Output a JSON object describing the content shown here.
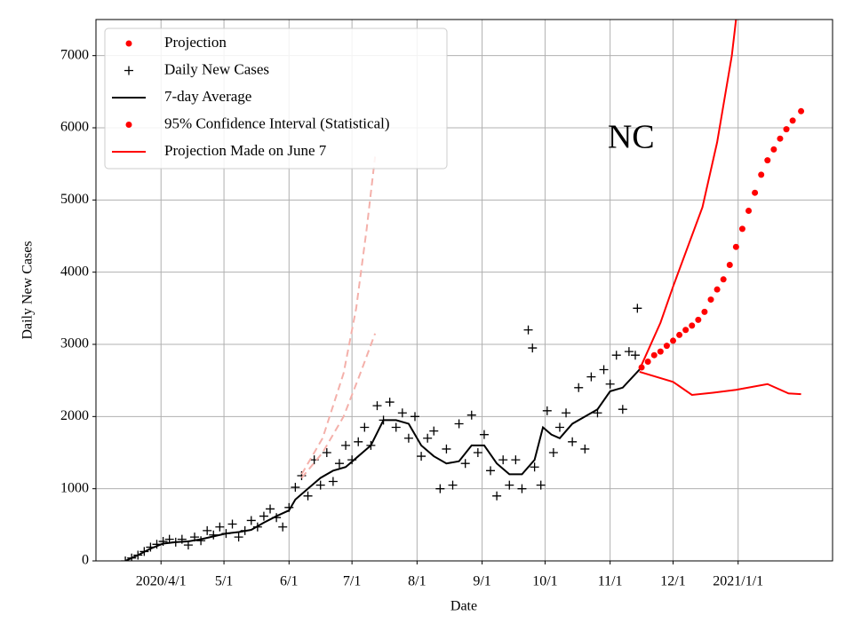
{
  "chart_data": {
    "type": "line",
    "xlabel": "Date",
    "ylabel": "Daily New Cases",
    "annotation": {
      "text": "NC",
      "x": "2020-11-11",
      "y": 5830
    },
    "xlim": [
      "2020-03-01",
      "2021-02-15"
    ],
    "ylim": [
      0,
      7500
    ],
    "xticks": [
      {
        "value": "2020-04-01",
        "label": "2020/4/1"
      },
      {
        "value": "2020-05-01",
        "label": "5/1"
      },
      {
        "value": "2020-06-01",
        "label": "6/1"
      },
      {
        "value": "2020-07-01",
        "label": "7/1"
      },
      {
        "value": "2020-08-01",
        "label": "8/1"
      },
      {
        "value": "2020-09-01",
        "label": "9/1"
      },
      {
        "value": "2020-10-01",
        "label": "10/1"
      },
      {
        "value": "2020-11-01",
        "label": "11/1"
      },
      {
        "value": "2020-12-01",
        "label": "12/1"
      },
      {
        "value": "2021-01-01",
        "label": "2021/1/1"
      }
    ],
    "yticks": [
      0,
      1000,
      2000,
      3000,
      4000,
      5000,
      6000,
      7000
    ],
    "grid": true,
    "legend": "upper left",
    "series": [
      {
        "name": "Projection",
        "color": "#ff0000",
        "legend_marker": "dot",
        "style": "dots",
        "parts": [
          {
            "x": [
              "2020-11-16",
              "2020-11-19",
              "2020-11-22",
              "2020-11-25",
              "2020-11-28",
              "2020-12-01",
              "2020-12-04",
              "2020-12-07",
              "2020-12-10",
              "2020-12-13",
              "2020-12-16",
              "2020-12-19",
              "2020-12-22",
              "2020-12-25",
              "2020-12-28",
              "2020-12-31",
              "2021-01-03",
              "2021-01-06",
              "2021-01-09",
              "2021-01-12",
              "2021-01-15",
              "2021-01-18",
              "2021-01-21",
              "2021-01-24",
              "2021-01-27",
              "2021-01-31"
            ],
            "values": [
              2680,
              2760,
              2850,
              2900,
              2980,
              3050,
              3130,
              3200,
              3260,
              3340,
              3450,
              3620,
              3760,
              3900,
              4100,
              4350,
              4600,
              4850,
              5100,
              5350,
              5550,
              5700,
              5850,
              5980,
              6100,
              6230
            ]
          }
        ]
      },
      {
        "name": "Daily New Cases",
        "color": "#000000",
        "legend_marker": "plus",
        "style": "plus",
        "parts": [
          {
            "x": [
              "2020-03-15",
              "2020-03-18",
              "2020-03-21",
              "2020-03-24",
              "2020-03-27",
              "2020-03-30",
              "2020-04-02",
              "2020-04-05",
              "2020-04-08",
              "2020-04-11",
              "2020-04-14",
              "2020-04-17",
              "2020-04-20",
              "2020-04-23",
              "2020-04-26",
              "2020-04-29",
              "2020-05-02",
              "2020-05-05",
              "2020-05-08",
              "2020-05-11",
              "2020-05-14",
              "2020-05-17",
              "2020-05-20",
              "2020-05-23",
              "2020-05-26",
              "2020-05-29",
              "2020-06-01",
              "2020-06-04",
              "2020-06-07",
              "2020-06-10",
              "2020-06-13",
              "2020-06-16",
              "2020-06-19",
              "2020-06-22",
              "2020-06-25",
              "2020-06-28",
              "2020-07-01",
              "2020-07-04",
              "2020-07-07",
              "2020-07-10",
              "2020-07-13",
              "2020-07-16",
              "2020-07-19",
              "2020-07-22",
              "2020-07-25",
              "2020-07-28",
              "2020-07-31",
              "2020-08-03",
              "2020-08-06",
              "2020-08-09",
              "2020-08-12",
              "2020-08-15",
              "2020-08-18",
              "2020-08-21",
              "2020-08-24",
              "2020-08-27",
              "2020-08-30",
              "2020-09-02",
              "2020-09-05",
              "2020-09-08",
              "2020-09-11",
              "2020-09-14",
              "2020-09-17",
              "2020-09-20",
              "2020-09-23",
              "2020-09-25",
              "2020-09-26",
              "2020-09-29",
              "2020-10-02",
              "2020-10-05",
              "2020-10-08",
              "2020-10-11",
              "2020-10-14",
              "2020-10-17",
              "2020-10-20",
              "2020-10-23",
              "2020-10-26",
              "2020-10-29",
              "2020-11-01",
              "2020-11-04",
              "2020-11-07",
              "2020-11-10",
              "2020-11-13",
              "2020-11-14"
            ],
            "values": [
              0,
              40,
              80,
              130,
              190,
              230,
              270,
              300,
              260,
              300,
              220,
              330,
              280,
              420,
              360,
              470,
              380,
              510,
              330,
              420,
              560,
              470,
              620,
              720,
              600,
              470,
              740,
              1020,
              1180,
              900,
              1400,
              1050,
              1500,
              1100,
              1350,
              1600,
              1400,
              1650,
              1850,
              1600,
              2150,
              1950,
              2200,
              1850,
              2050,
              1700,
              2000,
              1450,
              1700,
              1800,
              1000,
              1550,
              1050,
              1900,
              1350,
              2020,
              1500,
              1750,
              1250,
              900,
              1400,
              1050,
              1400,
              1000,
              3200,
              2950,
              1300,
              1050,
              2080,
              1500,
              1850,
              2050,
              1650,
              2400,
              1550,
              2550,
              2050,
              2650,
              2450,
              2850,
              2100,
              2900,
              2850,
              3500
            ]
          }
        ]
      },
      {
        "name": "7-day Average",
        "color": "#000000",
        "legend_marker": "line",
        "style": "line",
        "parts": [
          {
            "x": [
              "2020-03-15",
              "2020-03-21",
              "2020-03-27",
              "2020-04-02",
              "2020-04-08",
              "2020-04-14",
              "2020-04-20",
              "2020-04-26",
              "2020-05-02",
              "2020-05-08",
              "2020-05-14",
              "2020-05-20",
              "2020-05-26",
              "2020-06-01",
              "2020-06-04",
              "2020-06-10",
              "2020-06-16",
              "2020-06-22",
              "2020-06-28",
              "2020-07-04",
              "2020-07-10",
              "2020-07-16",
              "2020-07-22",
              "2020-07-28",
              "2020-08-03",
              "2020-08-09",
              "2020-08-15",
              "2020-08-21",
              "2020-08-27",
              "2020-09-02",
              "2020-09-08",
              "2020-09-14",
              "2020-09-20",
              "2020-09-26",
              "2020-09-30",
              "2020-10-04",
              "2020-10-08",
              "2020-10-14",
              "2020-10-20",
              "2020-10-26",
              "2020-11-01",
              "2020-11-07",
              "2020-11-15"
            ],
            "values": [
              0,
              80,
              170,
              240,
              260,
              270,
              300,
              340,
              380,
              400,
              430,
              530,
              620,
              700,
              850,
              1000,
              1150,
              1250,
              1300,
              1450,
              1600,
              1950,
              1950,
              1900,
              1600,
              1450,
              1350,
              1380,
              1600,
              1600,
              1350,
              1200,
              1200,
              1400,
              1850,
              1750,
              1700,
              1900,
              2000,
              2100,
              2350,
              2400,
              2650
            ]
          }
        ]
      },
      {
        "name": "95% Confidence Interval (Statistical)",
        "color": "#ff0000",
        "legend_marker": "dot",
        "style": "line",
        "parts": [
          {
            "x": [
              "2020-11-15",
              "2020-11-25",
              "2020-12-01",
              "2020-12-15",
              "2020-12-22",
              "2020-12-29",
              "2020-12-31"
            ],
            "values": [
              2650,
              3300,
              3800,
              4900,
              5800,
              7000,
              7500
            ]
          },
          {
            "x": [
              "2020-11-15",
              "2020-12-01",
              "2020-12-10",
              "2020-12-20",
              "2020-12-31",
              "2021-01-15",
              "2021-01-25",
              "2021-01-31"
            ],
            "values": [
              2620,
              2480,
              2300,
              2330,
              2370,
              2450,
              2320,
              2310
            ]
          }
        ]
      },
      {
        "name": "Projection Made on June 7",
        "color": "#ff0000",
        "draw_color": "#f4b0aa",
        "legend_marker": "line",
        "style": "dashed",
        "parts": [
          {
            "x": [
              "2020-06-07",
              "2020-06-17",
              "2020-06-27",
              "2020-07-03",
              "2020-07-08",
              "2020-07-12"
            ],
            "values": [
              1200,
              1700,
              2600,
              3500,
              4600,
              5600
            ]
          },
          {
            "x": [
              "2020-06-07",
              "2020-06-17",
              "2020-06-27",
              "2020-07-05",
              "2020-07-12"
            ],
            "values": [
              1150,
              1500,
              2000,
              2600,
              3150
            ]
          }
        ]
      }
    ]
  }
}
